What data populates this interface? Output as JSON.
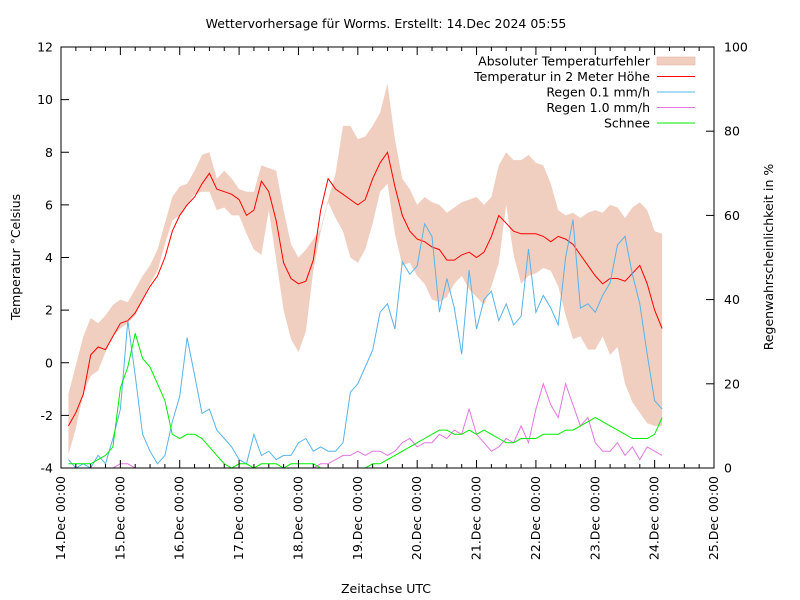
{
  "chart_data": {
    "type": "line",
    "title": "Wettervorhersage für Worms. Erstellt: 14.Dec 2024 05:55",
    "xlabel": "Zeitachse UTC",
    "ylabel": "Temperatur °Celsius",
    "y2label": "Regenwahrscheinlichkeit in %",
    "x_unit": "hours since 14.Dec 00:00 UTC",
    "xlim": [
      0,
      264
    ],
    "ylim": [
      -4,
      12
    ],
    "y2lim": [
      0,
      100
    ],
    "x_ticks": [
      {
        "value": 0,
        "label": "14.Dec 00:00"
      },
      {
        "value": 24,
        "label": "15.Dec 00:00"
      },
      {
        "value": 48,
        "label": "16.Dec 00:00"
      },
      {
        "value": 72,
        "label": "17.Dec 00:00"
      },
      {
        "value": 96,
        "label": "18.Dec 00:00"
      },
      {
        "value": 120,
        "label": "19.Dec 00:00"
      },
      {
        "value": 144,
        "label": "20.Dec 00:00"
      },
      {
        "value": 168,
        "label": "21.Dec 00:00"
      },
      {
        "value": 192,
        "label": "22.Dec 00:00"
      },
      {
        "value": 216,
        "label": "23.Dec 00:00"
      },
      {
        "value": 240,
        "label": "24.Dec 00:00"
      },
      {
        "value": 264,
        "label": "25.Dec 00:00"
      }
    ],
    "y_ticks": [
      -4,
      -2,
      0,
      2,
      4,
      6,
      8,
      10,
      12
    ],
    "y2_ticks": [
      0,
      20,
      40,
      60,
      80,
      100
    ],
    "legend_position": "top-right",
    "grid": false,
    "x": [
      3,
      6,
      9,
      12,
      15,
      18,
      21,
      24,
      27,
      30,
      33,
      36,
      39,
      42,
      45,
      48,
      51,
      54,
      57,
      60,
      63,
      66,
      69,
      72,
      75,
      78,
      81,
      84,
      87,
      90,
      93,
      96,
      99,
      102,
      105,
      108,
      111,
      114,
      117,
      120,
      123,
      126,
      129,
      132,
      135,
      138,
      141,
      144,
      147,
      150,
      153,
      156,
      159,
      162,
      165,
      168,
      171,
      174,
      177,
      180,
      183,
      186,
      189,
      192,
      195,
      198,
      201,
      204,
      207,
      210,
      213,
      216,
      219,
      222,
      225,
      228,
      231,
      234,
      237,
      240,
      243
    ],
    "series": [
      {
        "name": "Absoluter Temperaturfehler",
        "kind": "band",
        "axis": "y",
        "color": "#f0cfc0",
        "lower": [
          -3.5,
          -2.5,
          -1.2,
          -0.5,
          -0.3,
          0.4,
          1.0,
          1.3,
          1.5,
          1.8,
          2.4,
          3.0,
          3.5,
          4.5,
          5.4,
          5.6,
          6.0,
          6.4,
          6.5,
          6.5,
          5.8,
          5.9,
          5.6,
          5.6,
          4.9,
          4.3,
          4.1,
          5.8,
          3.9,
          2.0,
          0.9,
          0.4,
          1.2,
          3.5,
          5.0,
          6.1,
          5.5,
          5.0,
          4.0,
          3.8,
          4.3,
          5.3,
          6.5,
          6.8,
          4.9,
          3.7,
          3.8,
          3.3,
          3.0,
          2.4,
          2.3,
          2.5,
          3.0,
          3.3,
          2.8,
          2.5,
          2.2,
          2.9,
          3.8,
          6.0,
          4.1,
          3.0,
          3.3,
          3.4,
          3.6,
          3.5,
          2.9,
          1.8,
          0.9,
          1.0,
          0.5,
          0.5,
          1.0,
          0.3,
          0.6,
          -0.8,
          -1.5,
          -1.9,
          -2.3,
          -2.4,
          -2.4
        ],
        "upper": [
          -1.2,
          -0.1,
          1.0,
          1.7,
          1.5,
          1.8,
          2.2,
          2.4,
          2.3,
          2.8,
          3.3,
          3.7,
          4.3,
          5.3,
          6.3,
          6.7,
          6.8,
          7.3,
          7.9,
          8.0,
          7.0,
          7.3,
          7.0,
          6.6,
          6.5,
          6.5,
          7.5,
          7.4,
          7.3,
          5.8,
          4.5,
          4.0,
          4.3,
          4.7,
          5.1,
          6.2,
          7.2,
          9.0,
          9.0,
          8.5,
          8.6,
          9.0,
          9.5,
          10.6,
          8.5,
          7.0,
          6.6,
          6.0,
          6.3,
          6.1,
          6.0,
          5.7,
          5.9,
          6.1,
          6.2,
          6.3,
          6.0,
          6.3,
          7.5,
          8.0,
          7.7,
          7.7,
          7.9,
          7.6,
          7.5,
          6.8,
          5.8,
          5.6,
          5.7,
          5.5,
          5.7,
          5.8,
          5.7,
          6.0,
          5.9,
          5.5,
          5.9,
          6.1,
          5.8,
          5.0,
          4.9
        ]
      },
      {
        "name": "Temperatur in 2 Meter Höhe",
        "kind": "line",
        "axis": "y",
        "color": "#ff0000",
        "values": [
          -2.4,
          -1.9,
          -1.2,
          0.3,
          0.6,
          0.5,
          1.0,
          1.5,
          1.6,
          1.9,
          2.4,
          2.9,
          3.3,
          4.0,
          5.0,
          5.6,
          6.0,
          6.3,
          6.8,
          7.2,
          6.6,
          6.5,
          6.4,
          6.2,
          5.6,
          5.8,
          6.9,
          6.5,
          5.4,
          3.8,
          3.2,
          3.0,
          3.1,
          3.9,
          5.8,
          7.0,
          6.6,
          6.4,
          6.2,
          6.0,
          6.2,
          7.0,
          7.6,
          8.0,
          6.7,
          5.6,
          5.0,
          4.7,
          4.6,
          4.4,
          4.3,
          3.9,
          3.9,
          4.1,
          4.2,
          4.0,
          4.2,
          4.8,
          5.6,
          5.3,
          5.0,
          4.9,
          4.9,
          4.9,
          4.8,
          4.6,
          4.8,
          4.7,
          4.5,
          4.1,
          3.7,
          3.3,
          3.0,
          3.2,
          3.2,
          3.1,
          3.4,
          3.7,
          3.0,
          2.0,
          1.3
        ]
      },
      {
        "name": "Regen 0.1 mm/h",
        "kind": "line",
        "axis": "y2",
        "color": "#56b4e9",
        "values": [
          2,
          0,
          1,
          0,
          3,
          1,
          7,
          14,
          35,
          22,
          8,
          4,
          1,
          3,
          11,
          17,
          31,
          22,
          13,
          14,
          9,
          7,
          5,
          2,
          1,
          8,
          3,
          4,
          2,
          3,
          3,
          6,
          7,
          4,
          5,
          4,
          4,
          6,
          18,
          20,
          24,
          28,
          37,
          39,
          33,
          49,
          46,
          48,
          58,
          55,
          37,
          45,
          38,
          27,
          47,
          33,
          40,
          42,
          35,
          39,
          34,
          36,
          52,
          37,
          41,
          38,
          34,
          50,
          59,
          38,
          39,
          37,
          41,
          44,
          53,
          55,
          46,
          39,
          27,
          16,
          14
        ]
      },
      {
        "name": "Regen 1.0 mm/h",
        "kind": "line",
        "axis": "y2",
        "color": "#e377e3",
        "values": [
          0,
          0,
          0,
          0,
          0,
          0,
          0,
          1,
          1,
          0,
          0,
          0,
          0,
          0,
          0,
          0,
          0,
          0,
          0,
          0,
          0,
          0,
          0,
          0,
          0,
          0,
          0,
          0,
          0,
          0,
          0,
          0,
          0,
          0,
          1,
          1,
          2,
          3,
          3,
          4,
          3,
          4,
          4,
          3,
          4,
          6,
          7,
          5,
          6,
          6,
          8,
          7,
          9,
          8,
          14,
          8,
          6,
          4,
          5,
          7,
          6,
          10,
          6,
          14,
          20,
          15,
          12,
          20,
          15,
          10,
          12,
          6,
          4,
          4,
          6,
          3,
          5,
          2,
          5,
          4,
          3
        ]
      },
      {
        "name": "Schnee",
        "kind": "line",
        "axis": "y2",
        "color": "#00ee00",
        "values": [
          1,
          1,
          1,
          1,
          2,
          3,
          5,
          19,
          24,
          32,
          26,
          24,
          20,
          16,
          8,
          7,
          8,
          8,
          7,
          5,
          3,
          1,
          0,
          1,
          1,
          0,
          1,
          1,
          1,
          0,
          1,
          1,
          1,
          1,
          0,
          0,
          0,
          0,
          0,
          0,
          0,
          1,
          1,
          2,
          3,
          4,
          5,
          6,
          7,
          8,
          9,
          9,
          8,
          8,
          9,
          8,
          9,
          8,
          7,
          6,
          6,
          7,
          7,
          7,
          8,
          8,
          8,
          9,
          9,
          10,
          11,
          12,
          11,
          10,
          9,
          8,
          7,
          7,
          7,
          8,
          12
        ]
      }
    ]
  }
}
